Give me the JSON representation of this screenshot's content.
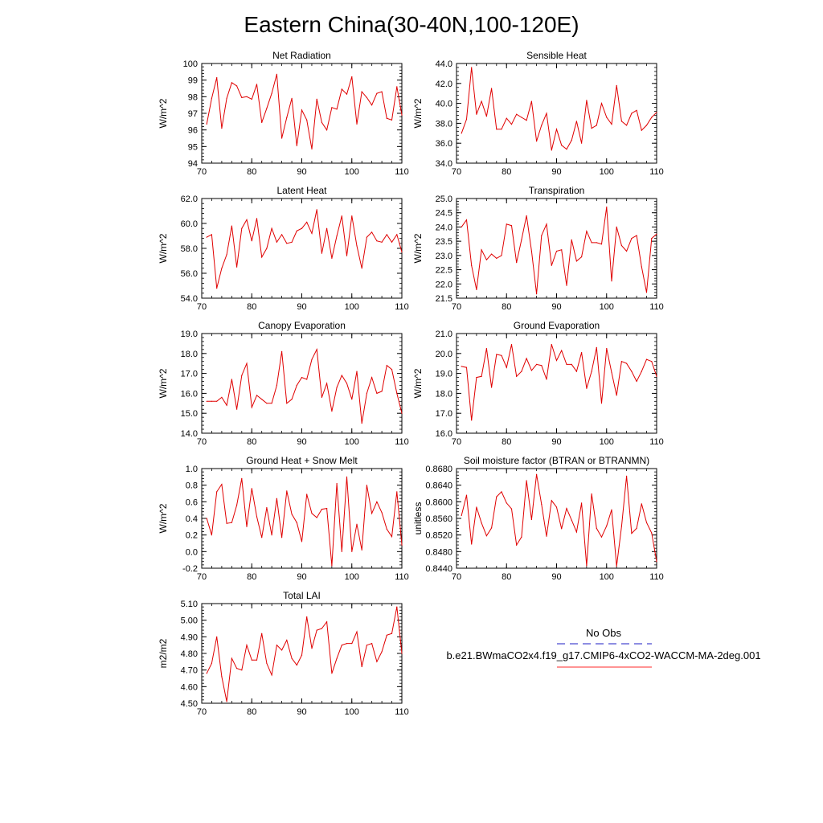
{
  "figure": {
    "title": "Eastern China(30-40N,100-120E)",
    "legend": {
      "entries": [
        {
          "label": "No Obs",
          "style": "dashed",
          "color": "#4a4ad0"
        },
        {
          "label": "b.e21.BWmaCO2x4.f19_g17.CMIP6-4xCO2-WACCM-MA-2deg.001",
          "style": "solid",
          "color": "#ff2a2a"
        }
      ]
    },
    "line_color": "#e00000"
  },
  "chart_data": [
    {
      "type": "line",
      "title": "Net Radiation",
      "ylabel": "W/m^2",
      "xlabel": "",
      "xlim": [
        70,
        110
      ],
      "ylim": [
        94,
        100
      ],
      "xticks": [
        70,
        80,
        90,
        100,
        110
      ],
      "yticks": [
        94,
        95,
        96,
        97,
        98,
        99,
        100
      ],
      "ytick_labels": [
        "94",
        "95",
        "96",
        "97",
        "98",
        "99",
        "100"
      ],
      "x": [
        71,
        72,
        73,
        74,
        75,
        76,
        77,
        78,
        79,
        80,
        81,
        82,
        83,
        84,
        85,
        86,
        87,
        88,
        89,
        90,
        91,
        92,
        93,
        94,
        95,
        96,
        97,
        98,
        99,
        100,
        101,
        102,
        103,
        104,
        105,
        106,
        107,
        108,
        109,
        110
      ],
      "values": [
        96.35,
        97.9,
        99.15,
        96.1,
        97.9,
        98.85,
        98.65,
        97.95,
        98.0,
        97.85,
        98.75,
        96.45,
        97.3,
        98.2,
        99.35,
        95.5,
        96.75,
        97.9,
        95.05,
        97.2,
        96.6,
        94.85,
        97.85,
        96.45,
        96.0,
        97.35,
        97.25,
        98.45,
        98.15,
        99.2,
        96.35,
        98.3,
        97.95,
        97.5,
        98.2,
        98.3,
        96.7,
        96.6,
        98.6,
        96.9
      ]
    },
    {
      "type": "line",
      "title": "Sensible Heat",
      "ylabel": "W/m^2",
      "xlabel": "",
      "xlim": [
        70,
        110
      ],
      "ylim": [
        34,
        44
      ],
      "xticks": [
        70,
        80,
        90,
        100,
        110
      ],
      "yticks": [
        34,
        36,
        38,
        40,
        42,
        44
      ],
      "ytick_labels": [
        "34.0",
        "36.0",
        "38.0",
        "40.0",
        "42.0",
        "44.0"
      ],
      "x": [
        71,
        72,
        73,
        74,
        75,
        76,
        77,
        78,
        79,
        80,
        81,
        82,
        83,
        84,
        85,
        86,
        87,
        88,
        89,
        90,
        91,
        92,
        93,
        94,
        95,
        96,
        97,
        98,
        99,
        100,
        101,
        102,
        103,
        104,
        105,
        106,
        107,
        108,
        109,
        110
      ],
      "values": [
        37.0,
        38.4,
        43.6,
        38.9,
        40.2,
        38.7,
        41.5,
        37.4,
        37.4,
        38.5,
        37.9,
        38.9,
        38.6,
        38.3,
        40.2,
        36.2,
        37.8,
        39.0,
        35.3,
        37.4,
        35.8,
        35.4,
        36.3,
        38.2,
        36.0,
        40.3,
        37.5,
        37.8,
        40.0,
        38.6,
        37.9,
        41.8,
        38.2,
        37.8,
        39.0,
        39.3,
        37.3,
        37.8,
        38.6,
        39.1
      ]
    },
    {
      "type": "line",
      "title": "Latent Heat",
      "ylabel": "W/m^2",
      "xlabel": "",
      "xlim": [
        70,
        110
      ],
      "ylim": [
        54,
        62
      ],
      "xticks": [
        70,
        80,
        90,
        100,
        110
      ],
      "yticks": [
        54,
        56,
        58,
        60,
        62
      ],
      "ytick_labels": [
        "54.0",
        "56.0",
        "58.0",
        "60.0",
        "62.0"
      ],
      "x": [
        71,
        72,
        73,
        74,
        75,
        76,
        77,
        78,
        79,
        80,
        81,
        82,
        83,
        84,
        85,
        86,
        87,
        88,
        89,
        90,
        91,
        92,
        93,
        94,
        95,
        96,
        97,
        98,
        99,
        100,
        101,
        102,
        103,
        104,
        105,
        106,
        107,
        108,
        109,
        110
      ],
      "values": [
        58.9,
        59.1,
        54.8,
        56.4,
        57.5,
        59.8,
        56.5,
        59.6,
        60.3,
        58.6,
        60.4,
        57.3,
        58.0,
        59.6,
        58.5,
        59.1,
        58.4,
        58.5,
        59.4,
        59.6,
        60.1,
        59.2,
        61.1,
        57.6,
        59.6,
        57.2,
        59.0,
        60.6,
        57.4,
        60.6,
        58.2,
        56.4,
        58.9,
        59.3,
        58.6,
        58.5,
        59.1,
        58.5,
        59.1,
        57.7
      ]
    },
    {
      "type": "line",
      "title": "Transpiration",
      "ylabel": "W/m^2",
      "xlabel": "",
      "xlim": [
        70,
        110
      ],
      "ylim": [
        21.5,
        25.0
      ],
      "xticks": [
        70,
        80,
        90,
        100,
        110
      ],
      "yticks": [
        21.5,
        22.0,
        22.5,
        23.0,
        23.5,
        24.0,
        24.5,
        25.0
      ],
      "ytick_labels": [
        "21.5",
        "22.0",
        "22.5",
        "23.0",
        "23.5",
        "24.0",
        "24.5",
        "25.0"
      ],
      "x": [
        71,
        72,
        73,
        74,
        75,
        76,
        77,
        78,
        79,
        80,
        81,
        82,
        83,
        84,
        85,
        86,
        87,
        88,
        89,
        90,
        91,
        92,
        93,
        94,
        95,
        96,
        97,
        98,
        99,
        100,
        101,
        102,
        103,
        104,
        105,
        106,
        107,
        108,
        109,
        110
      ],
      "values": [
        24.0,
        24.25,
        22.65,
        21.8,
        23.2,
        22.85,
        23.05,
        22.9,
        23.0,
        24.1,
        24.05,
        22.75,
        23.55,
        24.4,
        23.15,
        21.65,
        23.7,
        24.1,
        22.65,
        23.15,
        23.2,
        21.95,
        23.55,
        22.8,
        22.95,
        23.85,
        23.45,
        23.45,
        23.4,
        24.7,
        22.1,
        24.0,
        23.35,
        23.15,
        23.6,
        23.7,
        22.6,
        21.7,
        23.6,
        23.75
      ]
    },
    {
      "type": "line",
      "title": "Canopy Evaporation",
      "ylabel": "W/m^2",
      "xlabel": "",
      "xlim": [
        70,
        110
      ],
      "ylim": [
        14,
        19
      ],
      "xticks": [
        70,
        80,
        90,
        100,
        110
      ],
      "yticks": [
        14,
        15,
        16,
        17,
        18,
        19
      ],
      "ytick_labels": [
        "14.0",
        "15.0",
        "16.0",
        "17.0",
        "18.0",
        "19.0"
      ],
      "x": [
        71,
        72,
        73,
        74,
        75,
        76,
        77,
        78,
        79,
        80,
        81,
        82,
        83,
        84,
        85,
        86,
        87,
        88,
        89,
        90,
        91,
        92,
        93,
        94,
        95,
        96,
        97,
        98,
        99,
        100,
        101,
        102,
        103,
        104,
        105,
        106,
        107,
        108,
        109,
        110
      ],
      "values": [
        15.6,
        15.6,
        15.6,
        15.8,
        15.4,
        16.7,
        15.2,
        16.9,
        17.5,
        15.3,
        15.9,
        15.7,
        15.5,
        15.5,
        16.4,
        18.1,
        15.5,
        15.7,
        16.4,
        16.8,
        16.7,
        17.7,
        18.2,
        15.8,
        16.5,
        15.1,
        16.3,
        16.9,
        16.5,
        15.7,
        17.1,
        14.5,
        16.0,
        16.8,
        16.0,
        16.1,
        17.4,
        17.2,
        16.0,
        15.0
      ]
    },
    {
      "type": "line",
      "title": "Ground Evaporation",
      "ylabel": "W/m^2",
      "xlabel": "",
      "xlim": [
        70,
        110
      ],
      "ylim": [
        16,
        21
      ],
      "xticks": [
        70,
        80,
        90,
        100,
        110
      ],
      "yticks": [
        16,
        17,
        18,
        19,
        20,
        21
      ],
      "ytick_labels": [
        "16.0",
        "17.0",
        "18.0",
        "19.0",
        "20.0",
        "21.0"
      ],
      "x": [
        71,
        72,
        73,
        74,
        75,
        76,
        77,
        78,
        79,
        80,
        81,
        82,
        83,
        84,
        85,
        86,
        87,
        88,
        89,
        90,
        91,
        92,
        93,
        94,
        95,
        96,
        97,
        98,
        99,
        100,
        101,
        102,
        103,
        104,
        105,
        106,
        107,
        108,
        109,
        110
      ],
      "values": [
        19.35,
        19.3,
        16.65,
        18.8,
        18.85,
        20.25,
        18.3,
        19.95,
        19.9,
        19.3,
        20.45,
        18.85,
        19.1,
        19.75,
        19.15,
        19.45,
        19.4,
        18.7,
        20.45,
        19.65,
        20.15,
        19.45,
        19.45,
        19.1,
        20.05,
        18.25,
        19.1,
        20.3,
        17.5,
        20.25,
        19.05,
        17.9,
        19.6,
        19.5,
        19.1,
        18.6,
        19.1,
        19.7,
        19.6,
        18.85
      ]
    },
    {
      "type": "line",
      "title": "Ground Heat + Snow Melt",
      "ylabel": "W/m^2",
      "xlabel": "",
      "xlim": [
        70,
        110
      ],
      "ylim": [
        -0.2,
        1.0
      ],
      "xticks": [
        70,
        80,
        90,
        100,
        110
      ],
      "yticks": [
        -0.2,
        0.0,
        0.2,
        0.4,
        0.6,
        0.8,
        1.0
      ],
      "ytick_labels": [
        "-0.2",
        "0.0",
        "0.2",
        "0.4",
        "0.6",
        "0.8",
        "1.0"
      ],
      "x": [
        71,
        72,
        73,
        74,
        75,
        76,
        77,
        78,
        79,
        80,
        81,
        82,
        83,
        84,
        85,
        86,
        87,
        88,
        89,
        90,
        91,
        92,
        93,
        94,
        95,
        96,
        97,
        98,
        99,
        100,
        101,
        102,
        103,
        104,
        105,
        106,
        107,
        108,
        109,
        110
      ],
      "values": [
        0.4,
        0.2,
        0.72,
        0.81,
        0.34,
        0.35,
        0.56,
        0.88,
        0.3,
        0.76,
        0.42,
        0.17,
        0.53,
        0.2,
        0.64,
        0.17,
        0.73,
        0.45,
        0.35,
        0.12,
        0.69,
        0.46,
        0.41,
        0.51,
        0.52,
        -0.17,
        0.82,
        0.0,
        0.9,
        0.0,
        0.33,
        0.02,
        0.8,
        0.46,
        0.6,
        0.47,
        0.27,
        0.18,
        0.72,
        0.08
      ]
    },
    {
      "type": "line",
      "title": "Soil moisture factor (BTRAN or BTRANMN)",
      "ylabel": "unitless",
      "xlabel": "",
      "xlim": [
        70,
        110
      ],
      "ylim": [
        0.844,
        0.868
      ],
      "xticks": [
        70,
        80,
        90,
        100,
        110
      ],
      "yticks": [
        0.844,
        0.848,
        0.852,
        0.856,
        0.86,
        0.864,
        0.868
      ],
      "ytick_labels": [
        "0.8440",
        "0.8480",
        "0.8520",
        "0.8560",
        "0.8600",
        "0.8640",
        "0.8680"
      ],
      "x": [
        71,
        72,
        73,
        74,
        75,
        76,
        77,
        78,
        79,
        80,
        81,
        82,
        83,
        84,
        85,
        86,
        87,
        88,
        89,
        90,
        91,
        92,
        93,
        94,
        95,
        96,
        97,
        98,
        99,
        100,
        101,
        102,
        103,
        104,
        105,
        106,
        107,
        108,
        109,
        110
      ],
      "values": [
        0.8567,
        0.8616,
        0.8498,
        0.8587,
        0.8549,
        0.8518,
        0.8537,
        0.8612,
        0.8624,
        0.8597,
        0.8583,
        0.8496,
        0.8515,
        0.8651,
        0.8557,
        0.8666,
        0.8594,
        0.8517,
        0.8603,
        0.8587,
        0.8535,
        0.8584,
        0.8556,
        0.8527,
        0.8597,
        0.8446,
        0.8619,
        0.8536,
        0.8515,
        0.8542,
        0.8581,
        0.8445,
        0.8541,
        0.8662,
        0.8524,
        0.8536,
        0.8595,
        0.855,
        0.8525,
        0.8456
      ]
    },
    {
      "type": "line",
      "title": "Total LAI",
      "ylabel": "m2/m2",
      "xlabel": "",
      "xlim": [
        70,
        110
      ],
      "ylim": [
        4.5,
        5.1
      ],
      "xticks": [
        70,
        80,
        90,
        100,
        110
      ],
      "yticks": [
        4.5,
        4.6,
        4.7,
        4.8,
        4.9,
        5.0,
        5.1
      ],
      "ytick_labels": [
        "4.50",
        "4.60",
        "4.70",
        "4.80",
        "4.90",
        "5.00",
        "5.10"
      ],
      "x": [
        71,
        72,
        73,
        74,
        75,
        76,
        77,
        78,
        79,
        80,
        81,
        82,
        83,
        84,
        85,
        86,
        87,
        88,
        89,
        90,
        91,
        92,
        93,
        94,
        95,
        96,
        97,
        98,
        99,
        100,
        101,
        102,
        103,
        104,
        105,
        106,
        107,
        108,
        109,
        110
      ],
      "values": [
        4.68,
        4.74,
        4.9,
        4.66,
        4.51,
        4.77,
        4.71,
        4.7,
        4.85,
        4.76,
        4.76,
        4.92,
        4.74,
        4.67,
        4.85,
        4.82,
        4.88,
        4.77,
        4.73,
        4.79,
        5.02,
        4.83,
        4.94,
        4.95,
        4.99,
        4.68,
        4.77,
        4.85,
        4.86,
        4.86,
        4.93,
        4.72,
        4.85,
        4.86,
        4.75,
        4.81,
        4.91,
        4.92,
        5.08,
        4.8
      ]
    }
  ]
}
